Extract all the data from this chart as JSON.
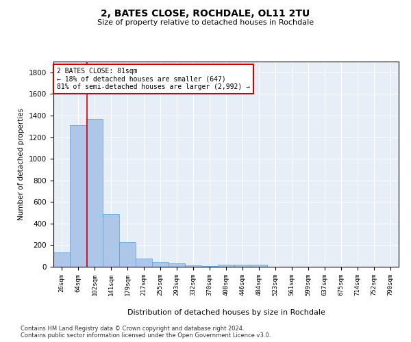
{
  "title": "2, BATES CLOSE, ROCHDALE, OL11 2TU",
  "subtitle": "Size of property relative to detached houses in Rochdale",
  "xlabel": "Distribution of detached houses by size in Rochdale",
  "ylabel": "Number of detached properties",
  "categories": [
    "26sqm",
    "64sqm",
    "102sqm",
    "141sqm",
    "179sqm",
    "217sqm",
    "255sqm",
    "293sqm",
    "332sqm",
    "370sqm",
    "408sqm",
    "446sqm",
    "484sqm",
    "523sqm",
    "561sqm",
    "599sqm",
    "637sqm",
    "675sqm",
    "714sqm",
    "752sqm",
    "790sqm"
  ],
  "values": [
    135,
    1310,
    1365,
    485,
    225,
    75,
    45,
    30,
    15,
    5,
    20,
    20,
    20,
    0,
    0,
    0,
    0,
    0,
    0,
    0,
    0
  ],
  "bar_color": "#aec6e8",
  "bar_edge_color": "#5a9fd4",
  "ylim": [
    0,
    1900
  ],
  "yticks": [
    0,
    200,
    400,
    600,
    800,
    1000,
    1200,
    1400,
    1600,
    1800
  ],
  "vline_x": 1.55,
  "vline_color": "#cc0000",
  "annotation_text": "2 BATES CLOSE: 81sqm\n← 18% of detached houses are smaller (647)\n81% of semi-detached houses are larger (2,992) →",
  "annotation_box_color": "#cc0000",
  "bg_color": "#e8eef8",
  "footer": "Contains HM Land Registry data © Crown copyright and database right 2024.\nContains public sector information licensed under the Open Government Licence v3.0."
}
